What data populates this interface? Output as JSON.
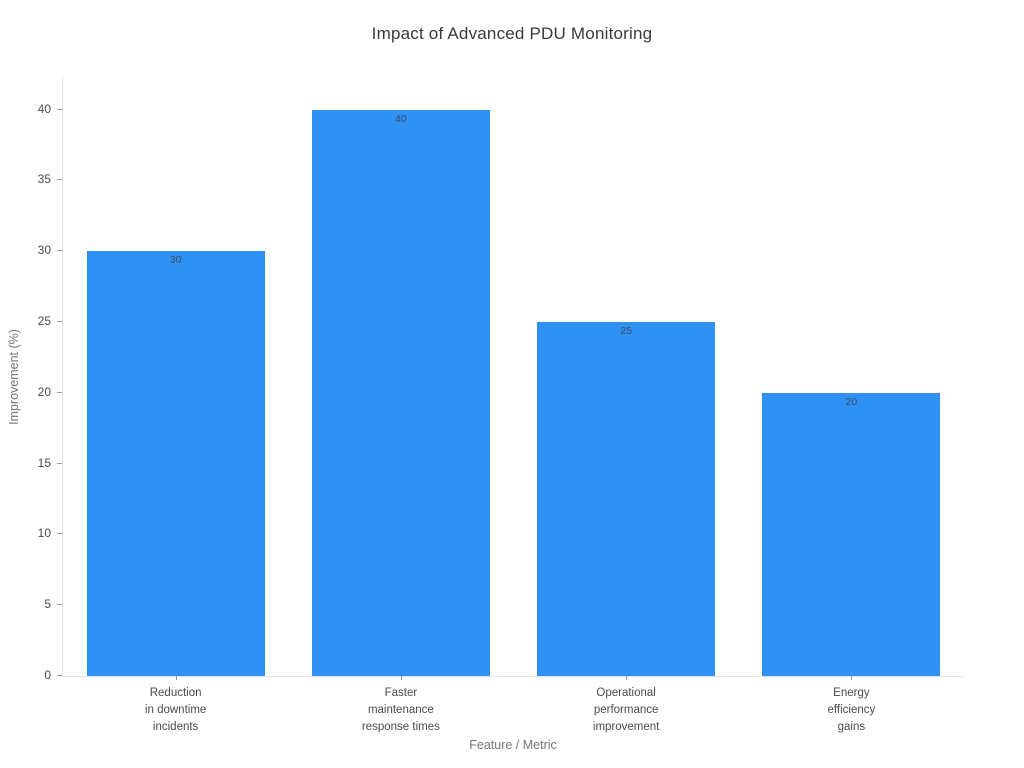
{
  "chart_data": {
    "type": "bar",
    "title": "Impact of Advanced PDU Monitoring",
    "xlabel": "Feature / Metric",
    "ylabel": "Improvement (%)",
    "categories": [
      [
        "Reduction",
        "in downtime",
        "incidents"
      ],
      [
        "Faster",
        "maintenance",
        "response times"
      ],
      [
        "Operational",
        "performance",
        "improvement"
      ],
      [
        "Energy",
        "efficiency",
        "gains"
      ]
    ],
    "values": [
      30,
      40,
      25,
      20
    ],
    "bar_value_labels": [
      "30",
      "40",
      "25",
      "20"
    ],
    "yticks": [
      0,
      5,
      10,
      15,
      20,
      25,
      30,
      35,
      40
    ],
    "ylim": [
      0,
      42.3
    ],
    "grid": false,
    "legend": "none",
    "colors": {
      "bar": "#3091F5",
      "bar_value_label": "#3d4f60",
      "tick_label": "#4a4a4a",
      "axis_title": "#767676",
      "spine": "#e2e2e2",
      "tick_mark": "#9a9a9a",
      "title": "#3a3a3a",
      "background": "#ffffff"
    }
  }
}
